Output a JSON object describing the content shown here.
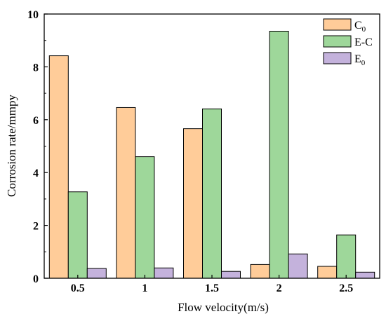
{
  "chart_data": {
    "type": "bar",
    "title": "",
    "xlabel": "Flow velocity(m/s)",
    "ylabel": "Corrosion rate/mmpy",
    "categories": [
      "0.5",
      "1",
      "1.5",
      "2",
      "2.5"
    ],
    "ylim": [
      0,
      10
    ],
    "yticks": [
      "0",
      "2",
      "4",
      "6",
      "8",
      "10"
    ],
    "grid": false,
    "legend_position": "top-right",
    "series": [
      {
        "name": "C0",
        "legend_main": "C",
        "legend_sub": "0",
        "color": "#FFCC99",
        "values": [
          8.42,
          6.46,
          5.66,
          0.52,
          0.45
        ]
      },
      {
        "name": "E-C",
        "legend_main": "E-C",
        "legend_sub": "",
        "color": "#9ED79A",
        "values": [
          3.27,
          4.6,
          6.41,
          9.35,
          1.64
        ]
      },
      {
        "name": "E0",
        "legend_main": "E",
        "legend_sub": "0",
        "color": "#C4B2DC",
        "values": [
          0.37,
          0.39,
          0.26,
          0.92,
          0.23
        ]
      }
    ]
  }
}
